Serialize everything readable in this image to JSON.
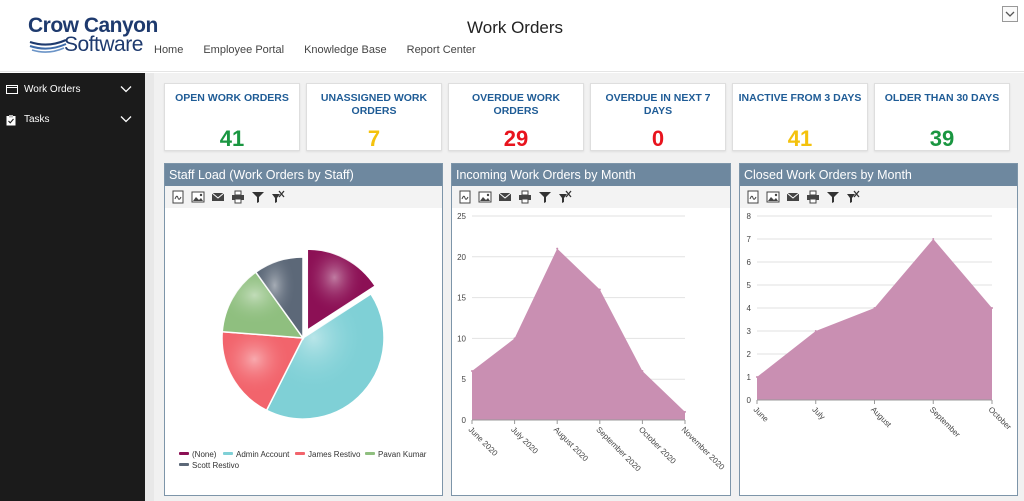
{
  "app": {
    "logo_line1": "Crow Canyon",
    "logo_line2": "Software",
    "title": "Work Orders"
  },
  "nav": [
    {
      "label": "Home"
    },
    {
      "label": "Employee Portal"
    },
    {
      "label": "Knowledge Base"
    },
    {
      "label": "Report Center"
    }
  ],
  "sidebar": {
    "items": [
      {
        "label": "Work Orders",
        "icon": "window-icon"
      },
      {
        "label": "Tasks",
        "icon": "clipboard-icon"
      }
    ]
  },
  "kpis": [
    {
      "title": "OPEN WORK ORDERS",
      "value": "41",
      "color": "#1a9641"
    },
    {
      "title": "UNASSIGNED WORK ORDERS",
      "value": "7",
      "color": "#f4c20d"
    },
    {
      "title": "OVERDUE WORK ORDERS",
      "value": "29",
      "color": "#e8141e"
    },
    {
      "title": "OVERDUE IN NEXT 7 DAYS",
      "value": "0",
      "color": "#e8141e"
    },
    {
      "title": "INACTIVE FROM 3 DAYS",
      "value": "41",
      "color": "#f4c20d"
    },
    {
      "title": "OLDER THAN 30 DAYS",
      "value": "39",
      "color": "#1a9641"
    }
  ],
  "toolbar_icons": [
    "pdf-icon",
    "image-icon",
    "email-icon",
    "print-icon",
    "filter-icon",
    "clear-filter-icon"
  ],
  "chart_data": [
    {
      "type": "pie",
      "title": "Staff Load (Work Orders by Staff)",
      "categories": [
        "(None)",
        "Admin Account",
        "James Restivo",
        "Pavan Kumar",
        "Scott Restivo"
      ],
      "values": [
        16,
        42,
        19,
        14,
        10
      ],
      "colors": [
        "#8c1055",
        "#7fd0d6",
        "#f2646c",
        "#8fbf7f",
        "#5c6878"
      ],
      "legend": "bottom"
    },
    {
      "type": "area",
      "title": "Incoming Work Orders by Month",
      "categories": [
        "June 2020",
        "July 2020",
        "August 2020",
        "September 2020",
        "October 2020",
        "November 2020"
      ],
      "values": [
        6,
        10,
        21,
        16,
        6,
        1
      ],
      "ylim": [
        0,
        25
      ],
      "yticks": [
        "0",
        "5",
        "10",
        "15",
        "20",
        "25"
      ],
      "color": "#c98fb2",
      "grid": true
    },
    {
      "type": "area",
      "title": "Closed Work Orders by Month",
      "categories": [
        "June",
        "July",
        "August",
        "September",
        "October"
      ],
      "values": [
        1,
        3,
        4,
        7,
        4
      ],
      "ylim": [
        0,
        8
      ],
      "yticks": [
        "0",
        "1",
        "2",
        "3",
        "4",
        "5",
        "6",
        "7",
        "8"
      ],
      "color": "#c98fb2",
      "grid": true
    }
  ]
}
